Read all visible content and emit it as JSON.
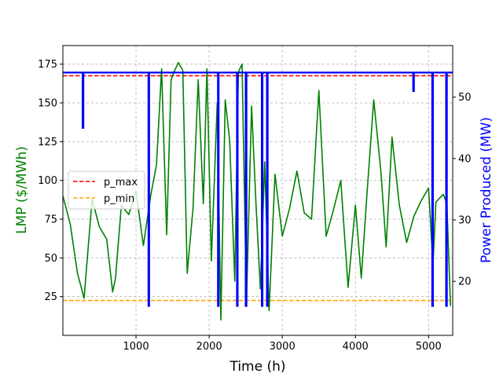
{
  "chart_data": {
    "type": "line",
    "xlabel": "Time (h)",
    "ylabel_left": "LMP ($/MWh)",
    "ylabel_right": "Power Produced (MW)",
    "colors": {
      "lmp": "#008000",
      "power": "#0000ff",
      "p_max": "#ff0000",
      "p_min": "#ffa500",
      "ylabel_left": "#008000",
      "ylabel_right": "#0000ff"
    },
    "xlim": [
      0,
      5330
    ],
    "ylim_left": [
      0,
      187
    ],
    "ylim_right": [
      11.2,
      58.4
    ],
    "xticks": [
      1000,
      2000,
      3000,
      4000,
      5000
    ],
    "yticks_left": [
      25,
      50,
      75,
      100,
      125,
      150,
      175
    ],
    "yticks_right": [
      20,
      30,
      40,
      50
    ],
    "grid": true,
    "legend_position": "center-left",
    "series": [
      {
        "name": "LMP",
        "axis": "left",
        "x": [
          0,
          100,
          200,
          290,
          400,
          500,
          600,
          680,
          720,
          800,
          900,
          1000,
          1100,
          1200,
          1280,
          1350,
          1420,
          1480,
          1520,
          1580,
          1640,
          1700,
          1780,
          1850,
          1920,
          1970,
          2030,
          2110,
          2160,
          2220,
          2280,
          2350,
          2400,
          2450,
          2510,
          2580,
          2640,
          2700,
          2760,
          2820,
          2900,
          3000,
          3100,
          3200,
          3300,
          3400,
          3500,
          3600,
          3700,
          3800,
          3900,
          4000,
          4080,
          4150,
          4250,
          4350,
          4420,
          4500,
          4600,
          4700,
          4800,
          4900,
          5000,
          5060,
          5100,
          5200,
          5250,
          5300
        ],
        "y": [
          90,
          72,
          40,
          24,
          88,
          70,
          62,
          28,
          37,
          84,
          78,
          93,
          58,
          90,
          110,
          172,
          65,
          165,
          170,
          176,
          171,
          40,
          82,
          165,
          85,
          172,
          48,
          150,
          10,
          152,
          126,
          35,
          170,
          175,
          20,
          148,
          85,
          30,
          112,
          16,
          104,
          64,
          82,
          106,
          79,
          75,
          158,
          64,
          81,
          100,
          31,
          84,
          37,
          86,
          152,
          105,
          57,
          128,
          84,
          60,
          77,
          87,
          95,
          45,
          86,
          91,
          85,
          19
        ]
      },
      {
        "name": "Power Produced",
        "axis": "right",
        "x": [
          0,
          270,
          270,
          280,
          280,
          1170,
          1170,
          1180,
          1180,
          2120,
          2120,
          2130,
          2130,
          2380,
          2380,
          2390,
          2390,
          2500,
          2500,
          2510,
          2510,
          2720,
          2720,
          2730,
          2730,
          2790,
          2790,
          2800,
          2800,
          4790,
          4790,
          4800,
          4800,
          5050,
          5050,
          5060,
          5060,
          5240,
          5240,
          5250,
          5250,
          5330
        ],
        "y": [
          54,
          54,
          45,
          45,
          54,
          54,
          16,
          16,
          54,
          54,
          16,
          16,
          54,
          54,
          16,
          16,
          54,
          54,
          16,
          16,
          54,
          54,
          16,
          16,
          54,
          54,
          16,
          16,
          54,
          54,
          51,
          51,
          54,
          54,
          16,
          16,
          54,
          54,
          16,
          16,
          54,
          54
        ]
      },
      {
        "name": "p_max",
        "axis": "left",
        "style": "dashed",
        "y_const": 167.5
      },
      {
        "name": "p_min",
        "axis": "left",
        "style": "dashed",
        "y_const": 22.5
      }
    ],
    "legend": [
      "p_max",
      "p_min"
    ]
  }
}
